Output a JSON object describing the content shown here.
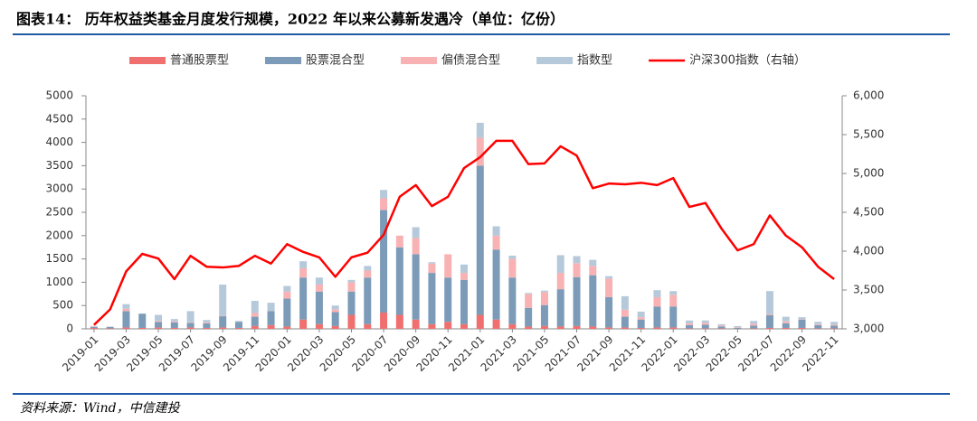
{
  "chart_data": {
    "type": "bar",
    "stacked": true,
    "title": "图表14： 历年权益类基金月度发行规模，2022 年以来公募新发遇冷（单位：亿份）",
    "categories": [
      "2019-01",
      null,
      "2019-03",
      null,
      "2019-05",
      null,
      "2019-07",
      null,
      "2019-09",
      null,
      "2019-11",
      null,
      "2020-01",
      null,
      "2020-03",
      null,
      "2020-05",
      null,
      "2020-07",
      null,
      "2020-09",
      null,
      "2020-11",
      null,
      "2021-01",
      null,
      "2021-03",
      null,
      "2021-05",
      null,
      "2021-07",
      null,
      "2021-09",
      null,
      "2021-11",
      null,
      "2022-01",
      null,
      "2022-03",
      null,
      "2022-05",
      null,
      "2022-07",
      null,
      "2022-09",
      null,
      "2022-11"
    ],
    "series": [
      {
        "name": "普通股票型",
        "color": "#f07070",
        "values": [
          20,
          10,
          30,
          20,
          30,
          20,
          30,
          20,
          30,
          20,
          60,
          80,
          50,
          200,
          100,
          60,
          300,
          100,
          350,
          300,
          200,
          100,
          150,
          100,
          300,
          200,
          100,
          50,
          60,
          50,
          60,
          50,
          30,
          30,
          20,
          30,
          30,
          10,
          10,
          10,
          5,
          10,
          20,
          20,
          20,
          10,
          10
        ]
      },
      {
        "name": "股票混合型",
        "color": "#7b9bb8",
        "values": [
          20,
          30,
          350,
          300,
          120,
          120,
          100,
          100,
          240,
          130,
          200,
          300,
          600,
          900,
          700,
          300,
          500,
          1000,
          2200,
          1450,
          1400,
          1100,
          950,
          950,
          3200,
          1500,
          1000,
          400,
          450,
          800,
          1050,
          1100,
          650,
          230,
          180,
          450,
          450,
          70,
          80,
          40,
          20,
          60,
          270,
          100,
          180,
          70,
          60
        ]
      },
      {
        "name": "偏债混合型",
        "color": "#f8b2b4",
        "values": [
          10,
          5,
          50,
          0,
          20,
          20,
          10,
          20,
          10,
          0,
          80,
          0,
          150,
          200,
          150,
          60,
          200,
          150,
          250,
          250,
          350,
          200,
          500,
          150,
          600,
          300,
          400,
          300,
          280,
          350,
          300,
          200,
          400,
          150,
          50,
          200,
          250,
          40,
          40,
          20,
          10,
          40,
          20,
          40,
          10,
          20,
          20
        ]
      },
      {
        "name": "指数型",
        "color": "#b5c9da",
        "values": [
          10,
          5,
          100,
          10,
          130,
          50,
          240,
          50,
          670,
          20,
          260,
          180,
          120,
          150,
          150,
          80,
          50,
          100,
          180,
          0,
          230,
          30,
          0,
          180,
          320,
          200,
          70,
          20,
          30,
          380,
          150,
          130,
          50,
          290,
          120,
          150,
          80,
          60,
          50,
          30,
          25,
          60,
          500,
          100,
          40,
          50,
          60
        ]
      },
      {
        "name": "沪深300指数（右轴）",
        "color": "#ff0000",
        "type": "line",
        "axis": "y2",
        "values": [
          3050,
          3250,
          3740,
          3965,
          3905,
          3640,
          3940,
          3800,
          3790,
          3810,
          3940,
          3840,
          4090,
          3990,
          3920,
          3670,
          3920,
          3980,
          4210,
          4700,
          4850,
          4580,
          4700,
          5070,
          5210,
          5420,
          5420,
          5120,
          5130,
          5350,
          5230,
          4810,
          4870,
          4860,
          4880,
          4850,
          4940,
          4570,
          4620,
          4290,
          4010,
          4090,
          4460,
          4200,
          4050,
          3800,
          3640
        ]
      }
    ],
    "ylim": [
      0,
      5000
    ],
    "yticks": [
      0,
      500,
      1000,
      1500,
      2000,
      2500,
      3000,
      3500,
      4000,
      4500,
      5000
    ],
    "y2lim": [
      3000,
      6000
    ],
    "y2ticks": [
      {
        "value": 3000,
        "label": "3,000"
      },
      {
        "value": 3500,
        "label": "3,500"
      },
      {
        "value": 4000,
        "label": "4,000"
      },
      {
        "value": 4500,
        "label": "4,500"
      },
      {
        "value": 5000,
        "label": "5,000"
      },
      {
        "value": 5500,
        "label": "5,500"
      },
      {
        "value": 6000,
        "label": "6,000"
      }
    ],
    "grid": false,
    "legend": "top"
  },
  "source": "资料来源：Wind，中信建投"
}
